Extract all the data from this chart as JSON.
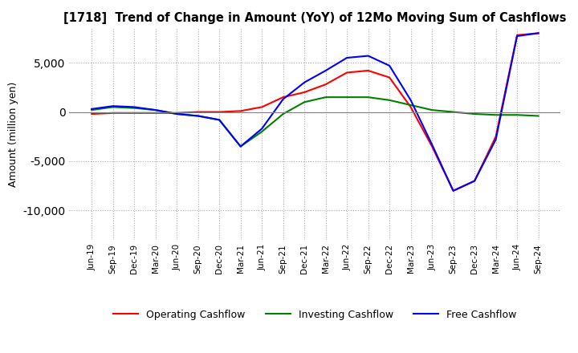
{
  "title": "[1718]  Trend of Change in Amount (YoY) of 12Mo Moving Sum of Cashflows",
  "ylabel": "Amount (million yen)",
  "x_labels": [
    "Jun-19",
    "Sep-19",
    "Dec-19",
    "Mar-20",
    "Jun-20",
    "Sep-20",
    "Dec-20",
    "Mar-21",
    "Jun-21",
    "Sep-21",
    "Dec-21",
    "Mar-22",
    "Jun-22",
    "Sep-22",
    "Dec-22",
    "Mar-23",
    "Jun-23",
    "Sep-23",
    "Dec-23",
    "Mar-24",
    "Jun-24",
    "Sep-24"
  ],
  "operating_cashflow": [
    -200,
    -100,
    -100,
    -100,
    -100,
    0,
    0,
    100,
    500,
    1500,
    2000,
    2800,
    4000,
    4200,
    3500,
    500,
    -3500,
    -8000,
    -7000,
    -2500,
    7800,
    8000
  ],
  "investing_cashflow": [
    200,
    500,
    400,
    200,
    -200,
    -400,
    -800,
    -3500,
    -2000,
    -200,
    1000,
    1500,
    1500,
    1500,
    1200,
    700,
    200,
    0,
    -200,
    -300,
    -300,
    -400
  ],
  "free_cashflow": [
    300,
    600,
    500,
    200,
    -200,
    -400,
    -800,
    -3500,
    -1700,
    1300,
    3000,
    4200,
    5500,
    5700,
    4700,
    1200,
    -3300,
    -8000,
    -7000,
    -2800,
    7700,
    8000
  ],
  "operating_color": "#ff0000",
  "investing_color": "#008000",
  "free_color": "#0000ff",
  "ylim": [
    -13000,
    8500
  ],
  "yticks": [
    -10000,
    -5000,
    0,
    5000
  ],
  "background_color": "#ffffff",
  "grid_color": "#aaaaaa"
}
